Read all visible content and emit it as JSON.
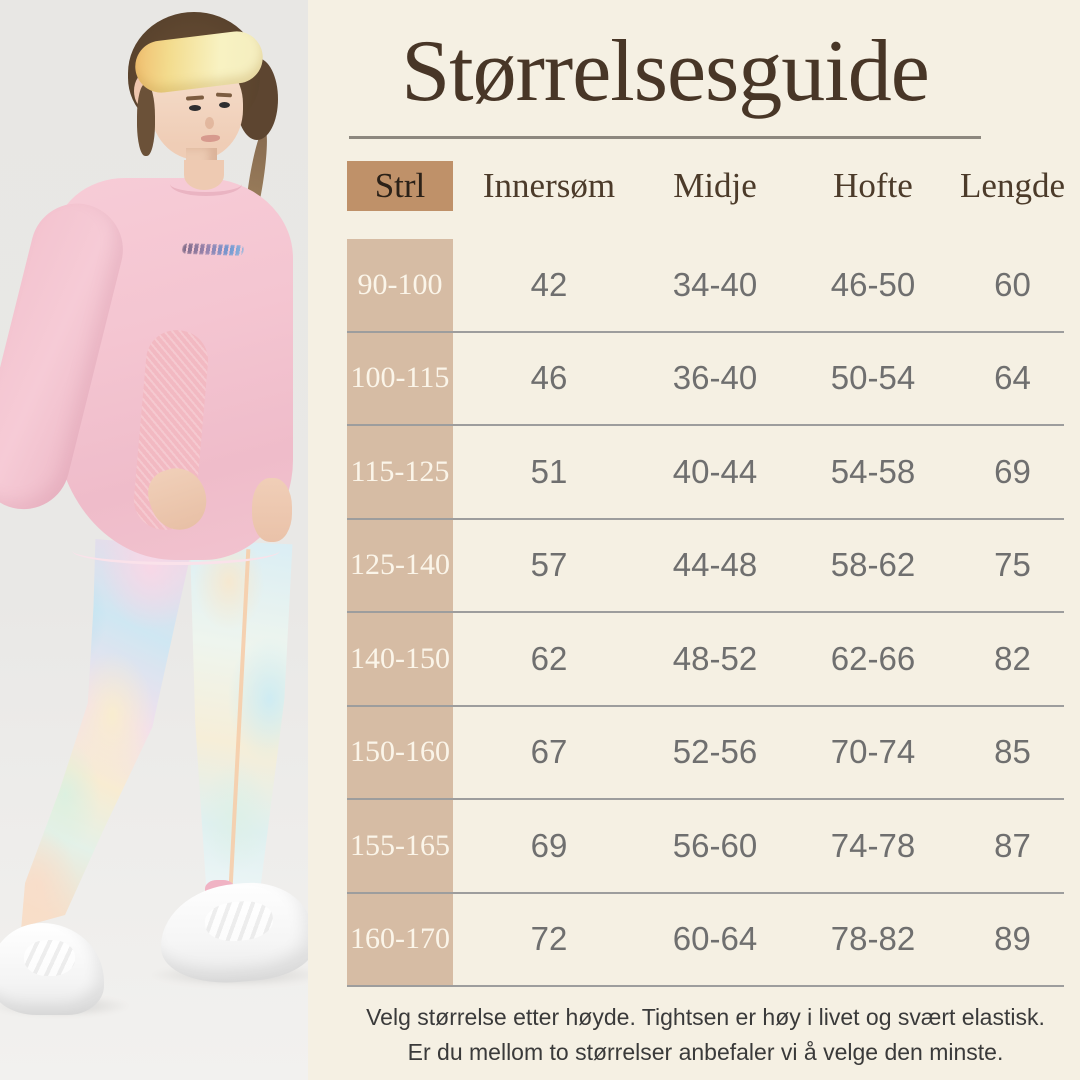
{
  "title": "Størrelsesguide",
  "table": {
    "headers": [
      "Strl",
      "Innersøm",
      "Midje",
      "Hofte",
      "Lengde"
    ],
    "rows": [
      [
        "90-100",
        "42",
        "34-40",
        "46-50",
        "60"
      ],
      [
        "100-115",
        "46",
        "36-40",
        "50-54",
        "64"
      ],
      [
        "115-125",
        "51",
        "40-44",
        "54-58",
        "69"
      ],
      [
        "125-140",
        "57",
        "44-48",
        "58-62",
        "75"
      ],
      [
        "140-150",
        "62",
        "48-52",
        "62-66",
        "82"
      ],
      [
        "150-160",
        "67",
        "52-56",
        "70-74",
        "85"
      ],
      [
        "155-165",
        "69",
        "56-60",
        "74-78",
        "87"
      ],
      [
        "160-170",
        "72",
        "60-64",
        "78-82",
        "89"
      ]
    ]
  },
  "note": {
    "line1": "Velg størrelse etter høyde. Tightsen er høy i livet og svært elastisk.",
    "line2": "Er du mellom to størrelser anbefaler vi å velge den minste."
  },
  "colors": {
    "background_cream": "#f5f0e3",
    "header_cell_tan": "#bf9169",
    "row_cell_tan": "#d6bca4",
    "title_brown": "#483627",
    "value_gray": "#6f6f6f",
    "divider_gray": "#9d9d9d",
    "photo_background_gray": "#e9e8e6",
    "shirt_pink": "#f2c3d2",
    "headband_yellow": "#f5eec0"
  }
}
